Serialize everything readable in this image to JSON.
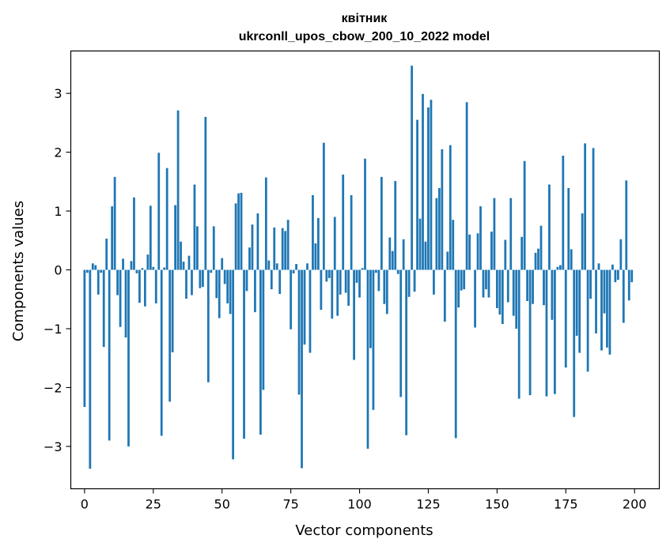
{
  "chart_data": {
    "type": "bar",
    "title": "квітник",
    "subtitle": "ukrconll_upos_cbow_200_10_2022 model",
    "xlabel": "Vector components",
    "ylabel": "Components values",
    "xlim": [
      -5,
      209
    ],
    "ylim": [
      -3.72,
      3.72
    ],
    "xticks": [
      0,
      25,
      50,
      75,
      100,
      125,
      150,
      175,
      200
    ],
    "xtick_labels": [
      "0",
      "25",
      "50",
      "75",
      "100",
      "125",
      "150",
      "175",
      "200"
    ],
    "yticks": [
      -3,
      -2,
      -1,
      0,
      1,
      2,
      3
    ],
    "ytick_labels": [
      "−3",
      "−2",
      "−1",
      "0",
      "1",
      "2",
      "3"
    ],
    "grid": false,
    "bar_color": "#1f77b4",
    "x": [
      0,
      1,
      2,
      3,
      4,
      5,
      6,
      7,
      8,
      9,
      10,
      11,
      12,
      13,
      14,
      15,
      16,
      17,
      18,
      19,
      20,
      21,
      22,
      23,
      24,
      25,
      26,
      27,
      28,
      29,
      30,
      31,
      32,
      33,
      34,
      35,
      36,
      37,
      38,
      39,
      40,
      41,
      42,
      43,
      44,
      45,
      46,
      47,
      48,
      49,
      50,
      51,
      52,
      53,
      54,
      55,
      56,
      57,
      58,
      59,
      60,
      61,
      62,
      63,
      64,
      65,
      66,
      67,
      68,
      69,
      70,
      71,
      72,
      73,
      74,
      75,
      76,
      77,
      78,
      79,
      80,
      81,
      82,
      83,
      84,
      85,
      86,
      87,
      88,
      89,
      90,
      91,
      92,
      93,
      94,
      95,
      96,
      97,
      98,
      99,
      100,
      101,
      102,
      103,
      104,
      105,
      106,
      107,
      108,
      109,
      110,
      111,
      112,
      113,
      114,
      115,
      116,
      117,
      118,
      119,
      120,
      121,
      122,
      123,
      124,
      125,
      126,
      127,
      128,
      129,
      130,
      131,
      132,
      133,
      134,
      135,
      136,
      137,
      138,
      139,
      140,
      141,
      142,
      143,
      144,
      145,
      146,
      147,
      148,
      149,
      150,
      151,
      152,
      153,
      154,
      155,
      156,
      157,
      158,
      159,
      160,
      161,
      162,
      163,
      164,
      165,
      166,
      167,
      168,
      169,
      170,
      171,
      172,
      173,
      174,
      175,
      176,
      177,
      178,
      179,
      180,
      181,
      182,
      183,
      184,
      185,
      186,
      187,
      188,
      189,
      190,
      191,
      192,
      193,
      194,
      195,
      196,
      197,
      198,
      199
    ],
    "values": [
      -2.33,
      -0.05,
      -3.38,
      0.11,
      0.08,
      -0.42,
      -0.05,
      -1.31,
      0.53,
      -2.9,
      1.08,
      1.58,
      -0.43,
      -0.97,
      0.19,
      -1.15,
      -3.0,
      0.15,
      1.23,
      -0.06,
      -0.56,
      0.03,
      -0.62,
      0.26,
      1.09,
      0.05,
      -0.57,
      1.99,
      -2.82,
      0.04,
      1.73,
      -2.24,
      -1.4,
      1.1,
      2.71,
      0.48,
      0.14,
      -0.49,
      0.24,
      -0.43,
      1.45,
      0.74,
      -0.31,
      -0.29,
      2.6,
      -1.91,
      -0.05,
      0.74,
      -0.48,
      -0.82,
      0.2,
      -0.24,
      -0.57,
      -0.75,
      -3.22,
      1.13,
      1.3,
      1.31,
      -2.87,
      -0.36,
      0.38,
      0.77,
      -0.72,
      0.96,
      -2.8,
      -2.04,
      1.57,
      0.16,
      -0.33,
      0.72,
      0.11,
      -0.41,
      0.71,
      0.66,
      0.85,
      -1.01,
      -0.06,
      0.1,
      -2.12,
      -3.37,
      -1.27,
      0.11,
      -1.41,
      1.27,
      0.45,
      0.88,
      -0.68,
      2.16,
      -0.2,
      -0.14,
      -0.83,
      0.9,
      -0.78,
      -0.42,
      1.62,
      -0.39,
      -0.61,
      1.27,
      -1.53,
      -0.22,
      -0.47,
      0.03,
      1.89,
      -3.04,
      -1.33,
      -2.38,
      -0.05,
      -0.36,
      1.58,
      -0.58,
      -0.75,
      0.55,
      0.32,
      1.51,
      -0.07,
      -2.16,
      0.52,
      -2.81,
      -0.46,
      3.47,
      -0.37,
      2.55,
      0.87,
      2.99,
      0.48,
      2.76,
      2.89,
      -0.42,
      1.22,
      1.39,
      2.05,
      -0.88,
      0.31,
      2.12,
      0.85,
      -2.86,
      -0.64,
      -0.35,
      -0.33,
      2.85,
      0.6,
      0.0,
      -0.98,
      0.62,
      1.08,
      -0.47,
      -0.33,
      -0.47,
      0.65,
      1.22,
      -0.65,
      -0.76,
      -0.92,
      0.51,
      -0.55,
      1.22,
      -0.78,
      -1.0,
      -2.19,
      0.56,
      1.85,
      -0.53,
      -2.13,
      -0.58,
      0.29,
      0.36,
      0.75,
      -0.6,
      -2.15,
      1.45,
      -0.85,
      -2.11,
      0.05,
      0.08,
      1.94,
      -1.66,
      1.39,
      0.35,
      -2.5,
      -1.12,
      -1.41,
      0.96,
      2.15,
      -1.73,
      -0.49,
      2.07,
      -1.08,
      0.11,
      -1.37,
      -0.74,
      -1.32,
      -1.44,
      0.09,
      -0.21,
      -0.17,
      0.52,
      -0.9,
      1.52,
      -0.52,
      -0.21
    ]
  }
}
